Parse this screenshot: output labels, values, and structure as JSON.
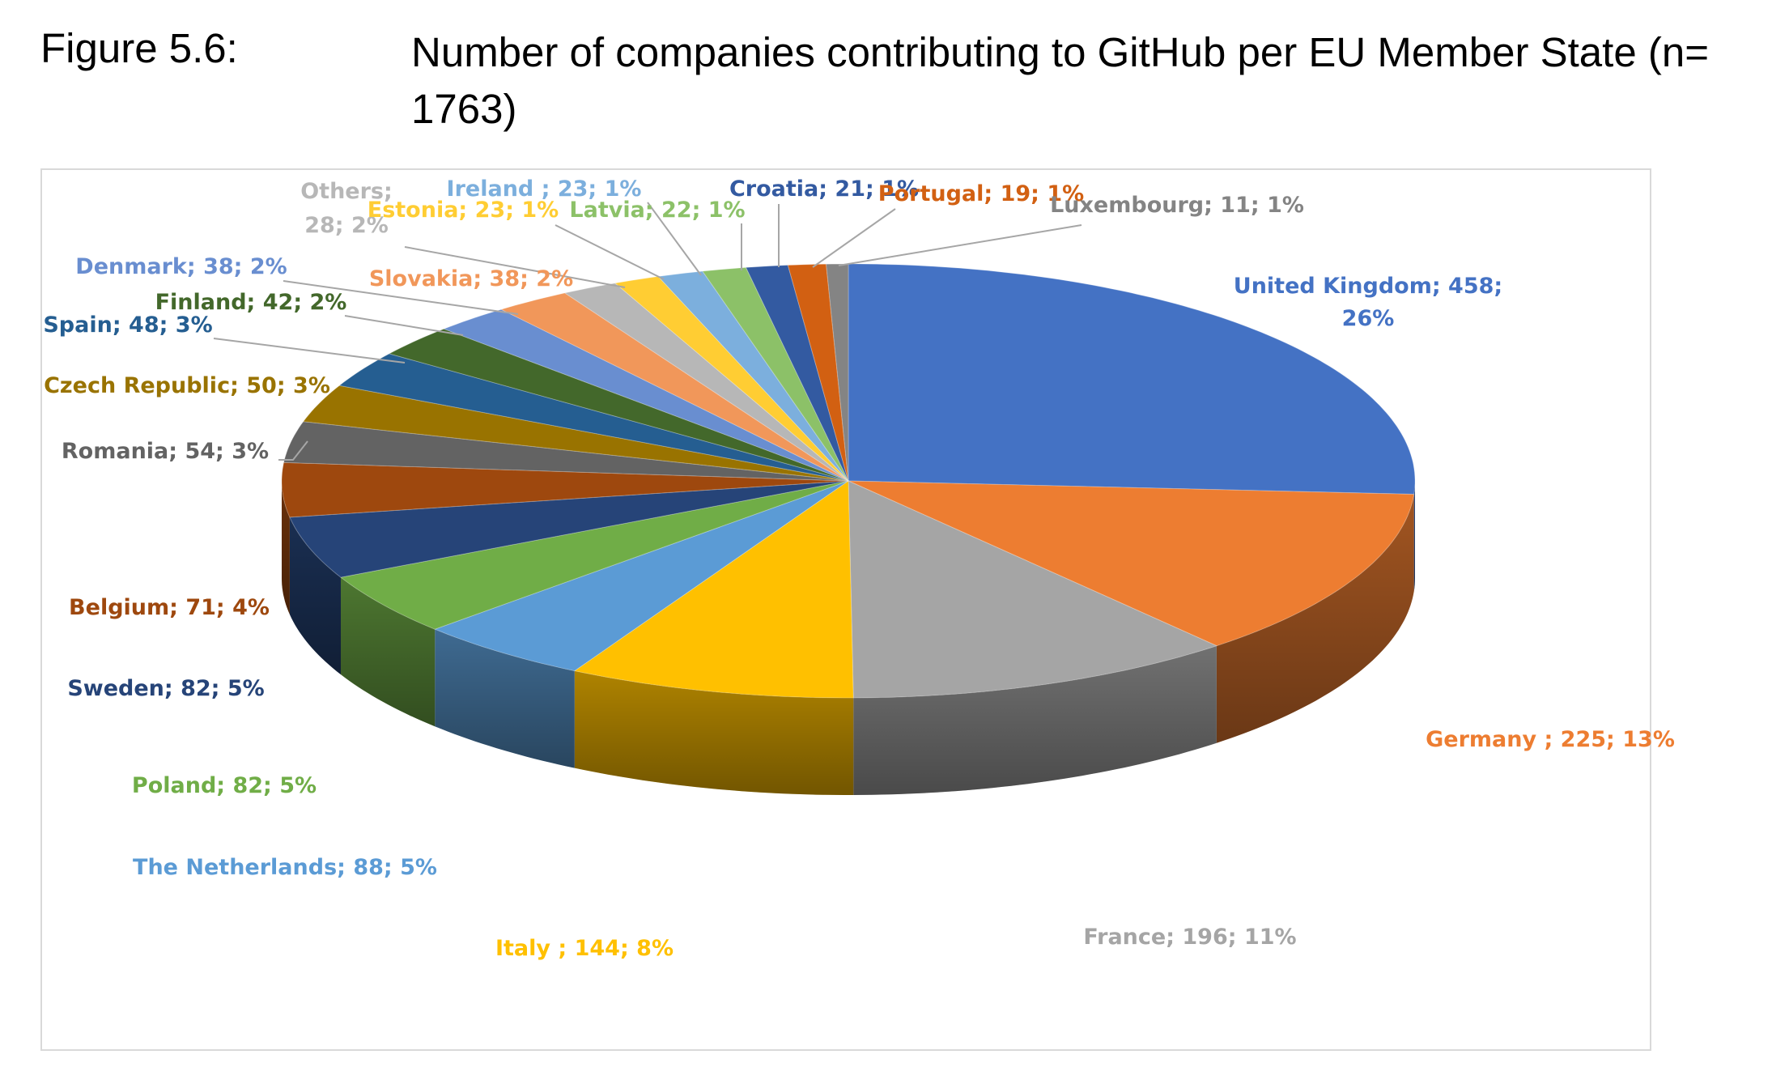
{
  "figure": {
    "label": "Figure 5.6:",
    "title": "Number of companies contributing to GitHub per EU Member State (n= 1763)"
  },
  "chart_data": {
    "type": "pie",
    "title": "Number of companies contributing to GitHub per EU Member State (n= 1763)",
    "style": "3d-exploded-none",
    "slices": [
      {
        "name": "United Kingdom",
        "value": 458,
        "percent": "26%",
        "color": "#4472C4",
        "label": "United Kingdom; 458; 26%",
        "label_lines": [
          "United Kingdom; 458;",
          "26%"
        ]
      },
      {
        "name": "Germany",
        "value": 225,
        "percent": "13%",
        "color": "#ED7D31",
        "label": "Germany ; 225; 13%"
      },
      {
        "name": "France",
        "value": 196,
        "percent": "11%",
        "color": "#A5A5A5",
        "label": "France; 196; 11%"
      },
      {
        "name": "Italy",
        "value": 144,
        "percent": "8%",
        "color": "#FFC000",
        "label": "Italy ; 144; 8%"
      },
      {
        "name": "The Netherlands",
        "value": 88,
        "percent": "5%",
        "color": "#5B9BD5",
        "label": "The Netherlands; 88; 5%"
      },
      {
        "name": "Poland",
        "value": 82,
        "percent": "5%",
        "color": "#70AD47",
        "label": "Poland; 82; 5%"
      },
      {
        "name": "Sweden",
        "value": 82,
        "percent": "5%",
        "color": "#264478",
        "label": "Sweden; 82; 5%"
      },
      {
        "name": "Belgium",
        "value": 71,
        "percent": "4%",
        "color": "#9E480E",
        "label": "Belgium; 71; 4%"
      },
      {
        "name": "Romania",
        "value": 54,
        "percent": "3%",
        "color": "#636363",
        "label": "Romania; 54; 3%"
      },
      {
        "name": "Czech Republic",
        "value": 50,
        "percent": "3%",
        "color": "#997300",
        "label": "Czech Republic; 50; 3%"
      },
      {
        "name": "Spain",
        "value": 48,
        "percent": "3%",
        "color": "#255E91",
        "label": "Spain; 48; 3%"
      },
      {
        "name": "Finland",
        "value": 42,
        "percent": "2%",
        "color": "#43682B",
        "label": "Finland; 42; 2%"
      },
      {
        "name": "Denmark",
        "value": 38,
        "percent": "2%",
        "color": "#698ED0",
        "label": "Denmark; 38; 2%"
      },
      {
        "name": "Slovakia",
        "value": 38,
        "percent": "2%",
        "color": "#F1975A",
        "label": "Slovakia; 38; 2%"
      },
      {
        "name": "Others",
        "value": 28,
        "percent": "2%",
        "color": "#B7B7B7",
        "label": "Others; 28; 2%",
        "label_lines": [
          "Others;",
          "28; 2%"
        ]
      },
      {
        "name": "Estonia",
        "value": 23,
        "percent": "1%",
        "color": "#FFCD33",
        "label": "Estonia; 23; 1%"
      },
      {
        "name": "Ireland",
        "value": 23,
        "percent": "1%",
        "color": "#7CAFDD",
        "label": "Ireland ; 23; 1%"
      },
      {
        "name": "Latvia",
        "value": 22,
        "percent": "1%",
        "color": "#8CC168",
        "label": "Latvia; 22; 1%"
      },
      {
        "name": "Croatia",
        "value": 21,
        "percent": "1%",
        "color": "#335AA1",
        "label": "Croatia; 21; 1%"
      },
      {
        "name": "Portugal",
        "value": 19,
        "percent": "1%",
        "color": "#D26012",
        "label": "Portugal; 19; 1%"
      },
      {
        "name": "Luxembourg",
        "value": 11,
        "percent": "1%",
        "color": "#848484",
        "label": "Luxembourg; 11; 1%"
      }
    ]
  }
}
